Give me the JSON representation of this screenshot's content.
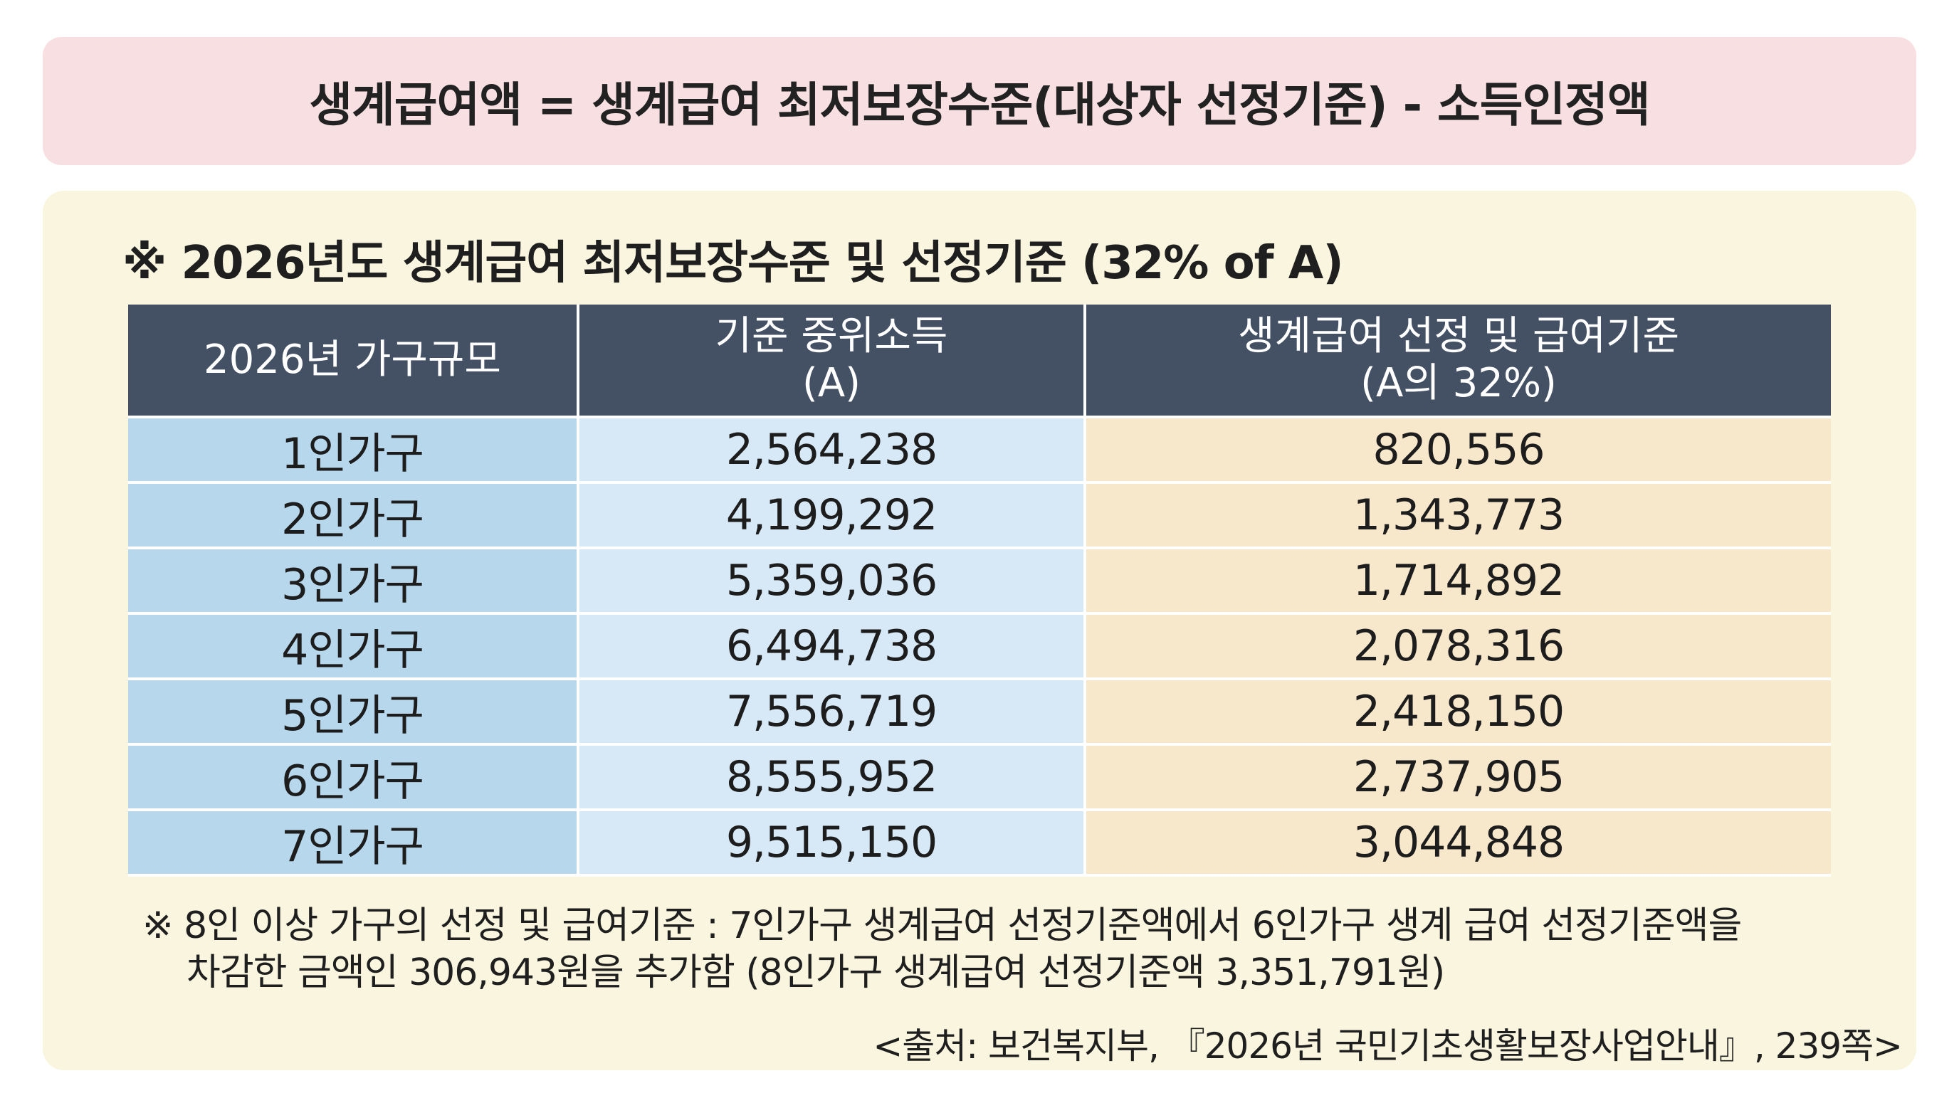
{
  "formula": "생계급여액 = 생계급여 최저보장수준(대상자 선정기준) - 소득인정액",
  "section_title": "※ 2026년도 생계급여 최저보장수준 및 선정기준 (32% of A)",
  "table": {
    "headers": {
      "col1": "2026년 가구규모",
      "col2_line1": "기준 중위소득",
      "col2_line2": "(A)",
      "col3_line1": "생계급여 선정 및 급여기준",
      "col3_line2": "(A의 32%)"
    },
    "rows": [
      {
        "size": "1인가구",
        "median": "2,564,238",
        "benefit": "820,556"
      },
      {
        "size": "2인가구",
        "median": "4,199,292",
        "benefit": "1,343,773"
      },
      {
        "size": "3인가구",
        "median": "5,359,036",
        "benefit": "1,714,892"
      },
      {
        "size": "4인가구",
        "median": "6,494,738",
        "benefit": "2,078,316"
      },
      {
        "size": "5인가구",
        "median": "7,556,719",
        "benefit": "2,418,150"
      },
      {
        "size": "6인가구",
        "median": "8,555,952",
        "benefit": "2,737,905"
      },
      {
        "size": "7인가구",
        "median": "9,515,150",
        "benefit": "3,044,848"
      }
    ]
  },
  "footnote": {
    "line1": "※ 8인 이상 가구의 선정 및 급여기준 : 7인가구 생계급여 선정기준액에서 6인가구 생계 급여 선정기준액을",
    "line2": "차감한 금액인 306,943원을 추가함 (8인가구 생계급여 선정기준액 3,351,791원)"
  },
  "source": "<출처: 보건복지부, 『2026년 국민기초생활보장사업안내』, 239쪽>",
  "colors": {
    "formula_bg": "#f7dfe2",
    "panel_bg": "#f9f5de",
    "header_bg": "#445063",
    "size_col_bg": "#b6d7ec",
    "median_col_bg": "#d7e9f6",
    "benefit_col_bg": "#f7e8cc"
  }
}
